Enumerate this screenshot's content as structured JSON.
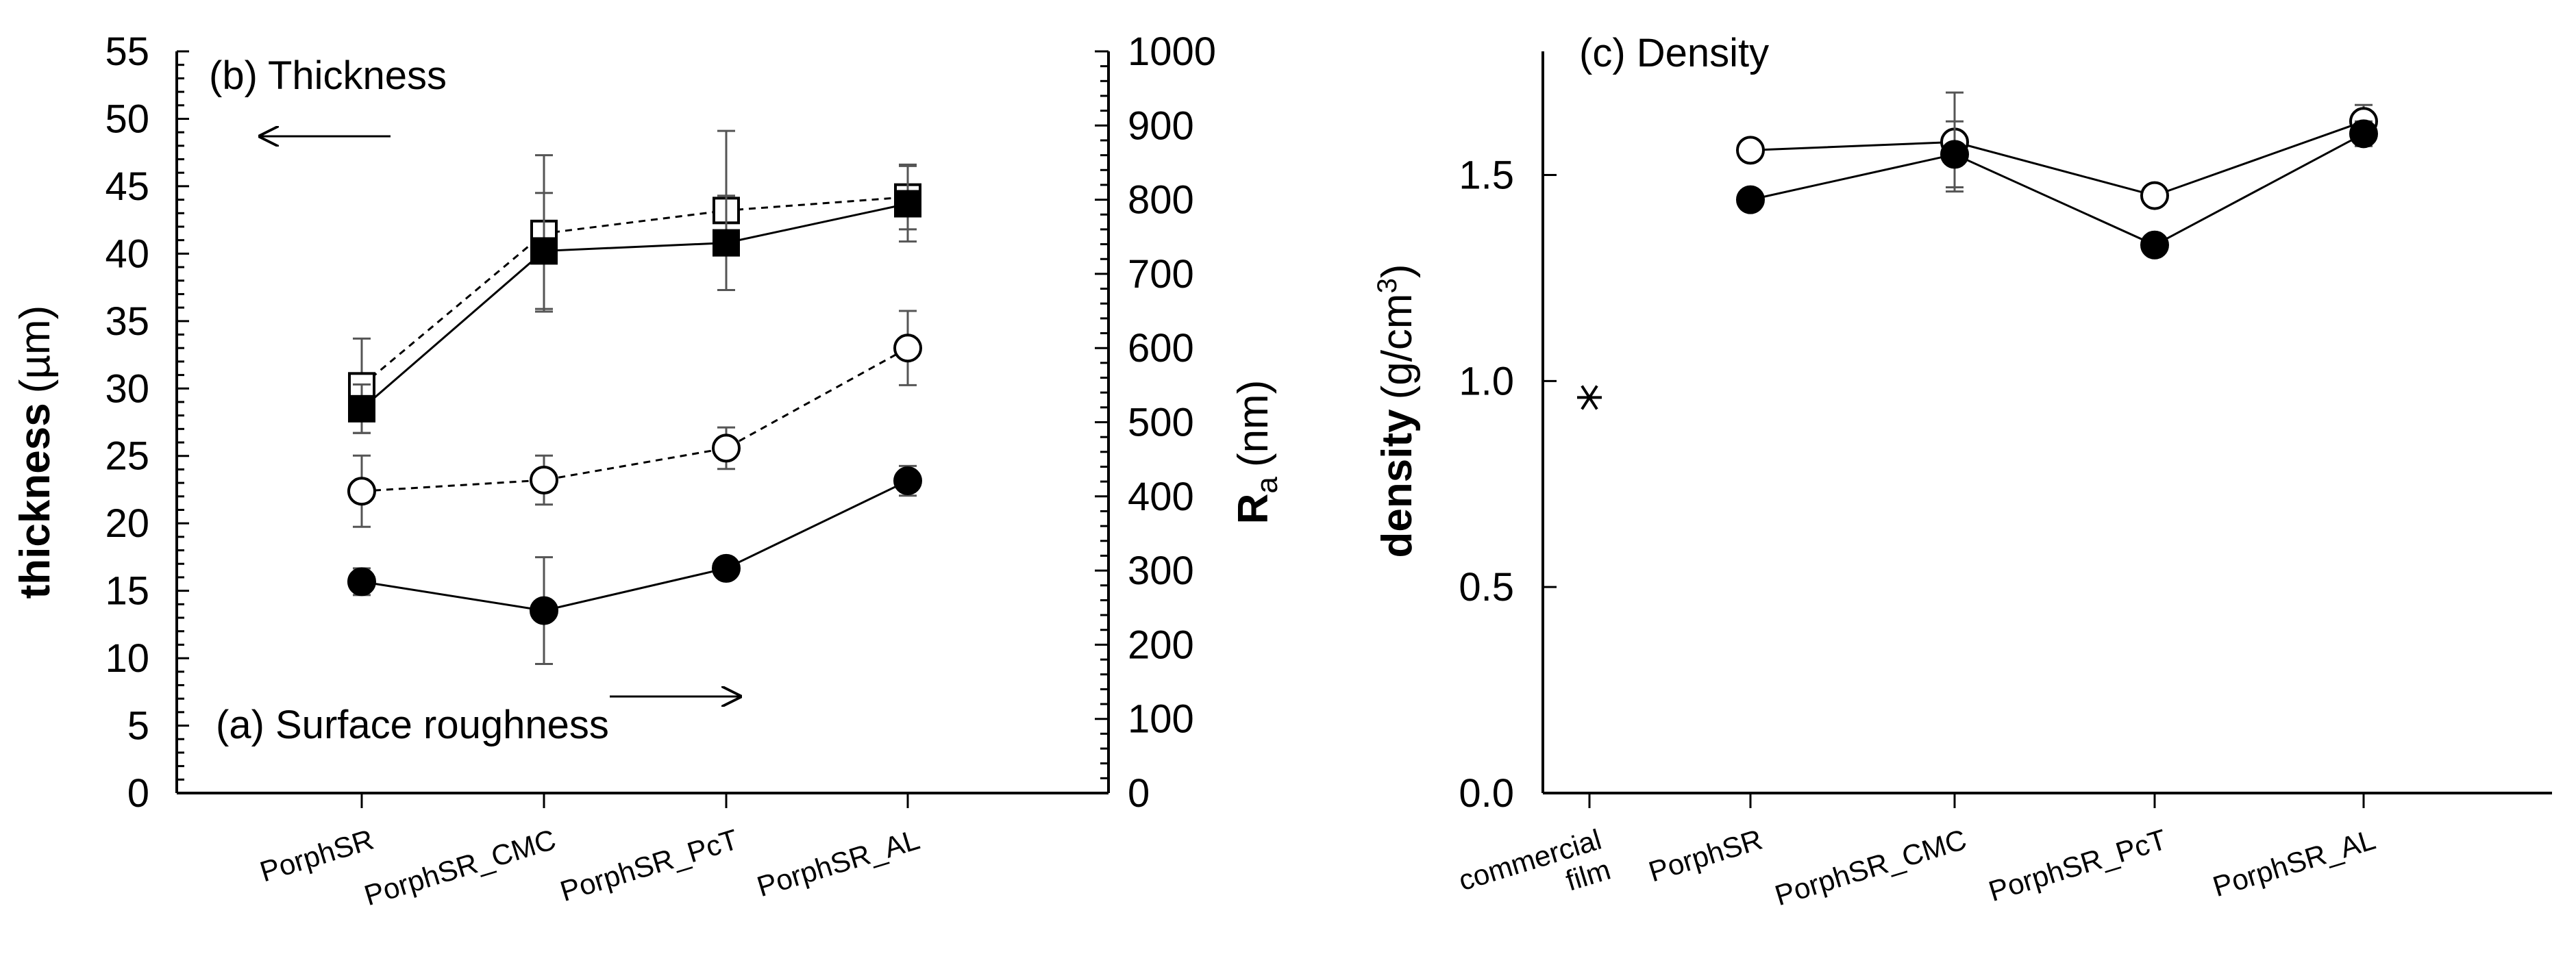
{
  "chart_data": [
    {
      "id": "left",
      "type": "line",
      "title": "(b) Thickness",
      "annotations": {
        "thickness_title": "(b) Thickness",
        "roughness_title": "(a) Surface roughness"
      },
      "categories": [
        "PorphSR",
        "PorphSR_CMC",
        "PorphSR_PcT",
        "PorphSR_AL"
      ],
      "y_left": {
        "label_bold": "thickness",
        "label_unit": "(µm)",
        "ylim": [
          0,
          55
        ],
        "ticks": [
          "0",
          "5",
          "10",
          "15",
          "20",
          "25",
          "30",
          "35",
          "40",
          "45",
          "50",
          "55"
        ]
      },
      "y_right": {
        "label_main": "R",
        "label_sub": "a",
        "label_unit": "(nm)",
        "ylim": [
          0,
          1000
        ],
        "ticks": [
          "0",
          "100",
          "200",
          "300",
          "400",
          "500",
          "600",
          "700",
          "800",
          "900",
          "1000"
        ]
      },
      "series": [
        {
          "name": "thickness (open squares, dashed)",
          "axis": "left",
          "marker": "square-open",
          "line": "dashed",
          "values": [
            30.2,
            41.5,
            43.2,
            44.2
          ],
          "errors": [
            3.5,
            5.8,
            5.9,
            2.4
          ]
        },
        {
          "name": "thickness (filled squares, solid)",
          "axis": "left",
          "marker": "square-filled",
          "line": "solid",
          "values": [
            28.5,
            40.2,
            40.8,
            43.7
          ],
          "errors": [
            1.8,
            4.3,
            3.5,
            2.8
          ]
        },
        {
          "name": "Ra (open circles, dashed)",
          "axis": "right",
          "marker": "circle-open",
          "line": "dashed",
          "values": [
            407,
            422,
            465,
            600
          ],
          "errors": [
            48,
            33,
            28,
            50
          ]
        },
        {
          "name": "Ra (filled circles, solid)",
          "axis": "right",
          "marker": "circle-filled",
          "line": "solid",
          "values": [
            285,
            246,
            303,
            421
          ],
          "errors": [
            18,
            72,
            10,
            20
          ]
        }
      ]
    },
    {
      "id": "right",
      "type": "line",
      "title": "(c) Density",
      "categories": [
        "commercial film",
        "PorphSR",
        "PorphSR_CMC",
        "PorphSR_PcT",
        "PorphSR_AL"
      ],
      "category_lines": [
        [
          "commercial",
          "film"
        ],
        [
          "PorphSR"
        ],
        [
          "PorphSR_CMC"
        ],
        [
          "PorphSR_PcT"
        ],
        [
          "PorphSR_AL"
        ]
      ],
      "y": {
        "label_bold": "density",
        "label_unit_pre": "(g/cm",
        "label_unit_sup": "3",
        "label_unit_post": ")",
        "ylim": [
          0,
          1.8
        ],
        "ticks": [
          "0.0",
          "0.5",
          "1.0",
          "1.5"
        ]
      },
      "commercial_film": {
        "value": 0.96,
        "marker": "asterisk"
      },
      "series": [
        {
          "name": "density (open circles)",
          "marker": "circle-open",
          "line": "solid",
          "values": [
            null,
            1.56,
            1.58,
            1.45,
            1.63
          ],
          "errors": [
            0,
            0,
            0.12,
            0.02,
            0.04
          ]
        },
        {
          "name": "density (filled circles)",
          "marker": "circle-filled",
          "line": "solid",
          "values": [
            null,
            1.44,
            1.55,
            1.33,
            1.6
          ],
          "errors": [
            0,
            0,
            0.08,
            0,
            0.03
          ]
        }
      ]
    }
  ]
}
